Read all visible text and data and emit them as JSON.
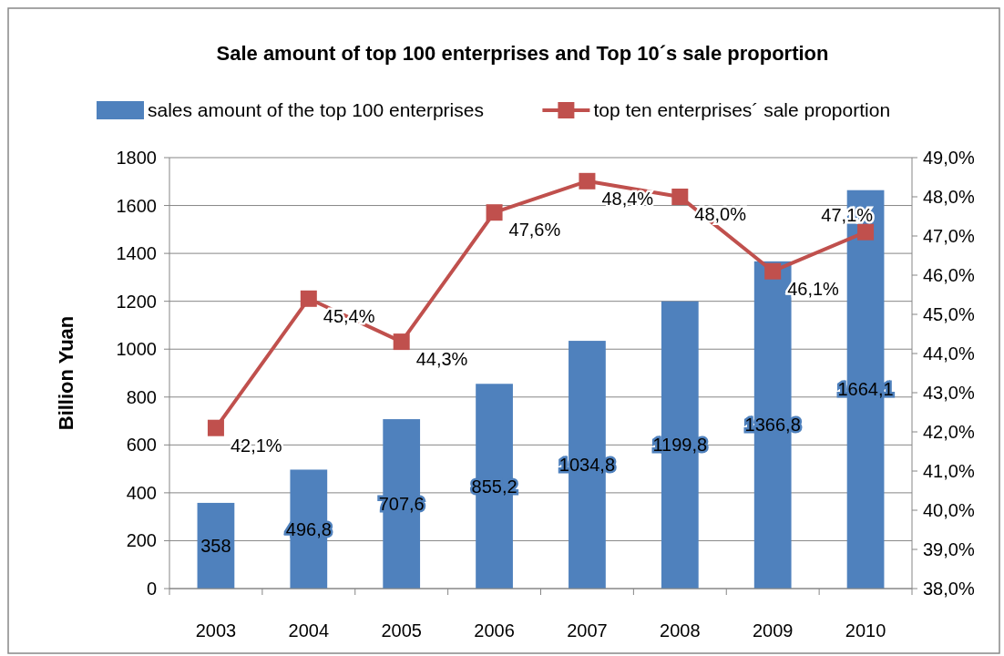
{
  "chart_data": {
    "type": "bar",
    "title": "Sale amount of top 100 enterprises and Top 10´s sale proportion",
    "ylabel": "Billion Yuan",
    "categories": [
      "2003",
      "2004",
      "2005",
      "2006",
      "2007",
      "2008",
      "2009",
      "2010"
    ],
    "series": [
      {
        "name": "sales amount of the top 100 enterprises",
        "color": "#4f81bd",
        "values": [
          358,
          496.8,
          707.6,
          855.2,
          1034.8,
          1199.8,
          1366.8,
          1664.1
        ],
        "value_labels": [
          "358",
          "496,8",
          "707,6",
          "855,2",
          "1034,8",
          "1199,8",
          "1366,8",
          "1664,1"
        ]
      },
      {
        "name": "top ten enterprises´ sale proportion",
        "type": "line",
        "axis": "y2",
        "color": "#c0504d",
        "marker": "square",
        "values": [
          42.1,
          45.4,
          44.3,
          47.6,
          48.4,
          48.0,
          46.1,
          47.1
        ],
        "value_labels": [
          "42,1%",
          "45,4%",
          "44,3%",
          "47,6%",
          "48,4%",
          "48,0%",
          "46,1%",
          "47,1%"
        ]
      }
    ],
    "ylim": [
      0,
      1800
    ],
    "yticks": [
      0,
      200,
      400,
      600,
      800,
      1000,
      1200,
      1400,
      1600,
      1800
    ],
    "y2lim": [
      38,
      49
    ],
    "y2ticks": [
      {
        "value": 38,
        "label": "38,0%"
      },
      {
        "value": 39,
        "label": "39,0%"
      },
      {
        "value": 40,
        "label": "40,0%"
      },
      {
        "value": 41,
        "label": "41,0%"
      },
      {
        "value": 42,
        "label": "42,0%"
      },
      {
        "value": 43,
        "label": "43,0%"
      },
      {
        "value": 44,
        "label": "44,0%"
      },
      {
        "value": 45,
        "label": "45,0%"
      },
      {
        "value": 46,
        "label": "46,0%"
      },
      {
        "value": 47,
        "label": "47,0%"
      },
      {
        "value": 48,
        "label": "48,0%"
      },
      {
        "value": 49,
        "label": "49,0%"
      }
    ],
    "grid": "y",
    "legend": "top"
  }
}
